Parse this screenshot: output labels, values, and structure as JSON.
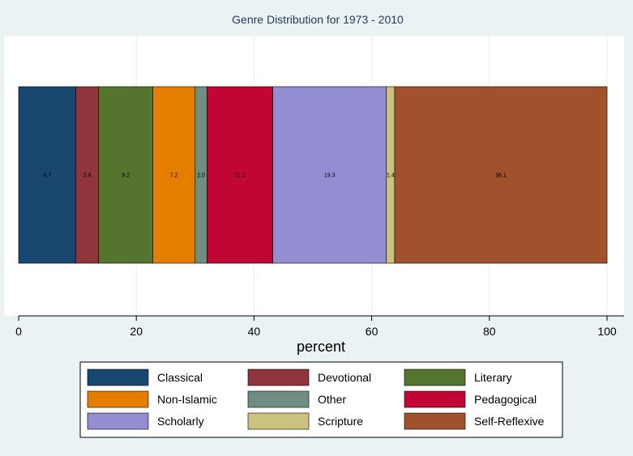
{
  "chart_data": {
    "type": "bar",
    "orientation": "horizontal-stacked",
    "title": "Genre Distribution for 1973 - 2010",
    "xlabel": "percent",
    "xlim": [
      0,
      100
    ],
    "x_ticks": [
      0,
      20,
      40,
      60,
      80,
      100
    ],
    "grid": true,
    "legend_position": "bottom",
    "series": [
      {
        "name": "Classical",
        "value": 9.7,
        "label": "9.7",
        "color": "#1a476f"
      },
      {
        "name": "Devotional",
        "value": 3.9,
        "label": "3.9",
        "color": "#90353b"
      },
      {
        "name": "Literary",
        "value": 9.2,
        "label": "9.2",
        "color": "#55752f"
      },
      {
        "name": "Non-Islamic",
        "value": 7.2,
        "label": "7.2",
        "color": "#e37e00"
      },
      {
        "name": "Other",
        "value": 2.0,
        "label": "2.0",
        "color": "#6e8e84"
      },
      {
        "name": "Pedagogical",
        "value": 11.2,
        "label": "11.2",
        "color": "#c10534"
      },
      {
        "name": "Scholarly",
        "value": 19.3,
        "label": "19.3",
        "color": "#938dd2"
      },
      {
        "name": "Scripture",
        "value": 1.4,
        "label": "1.4",
        "color": "#cac27e"
      },
      {
        "name": "Self-Reflexive",
        "value": 36.1,
        "label": "36.1",
        "color": "#a0522d"
      }
    ]
  }
}
